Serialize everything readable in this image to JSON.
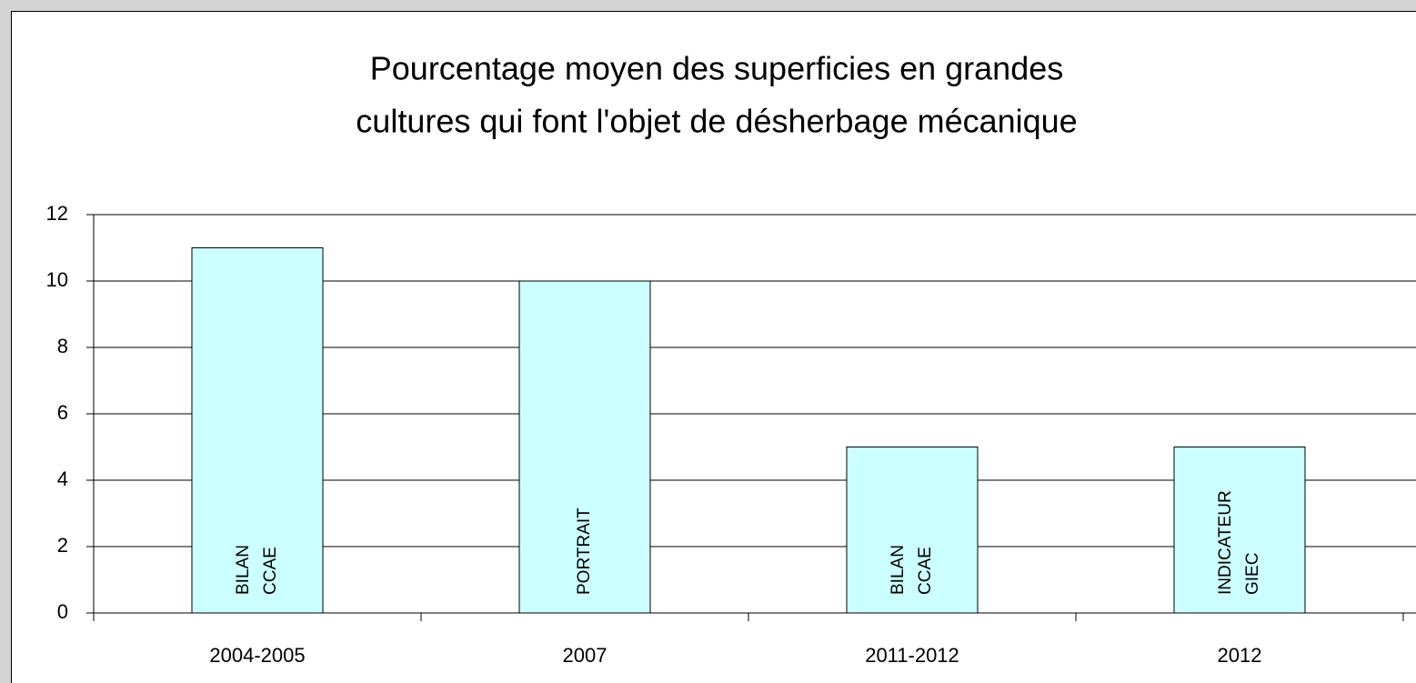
{
  "chart_data": {
    "type": "bar",
    "title": [
      "Pourcentage moyen des superficies en grandes",
      "cultures qui font l'objet de désherbage mécanique"
    ],
    "categories": [
      "2004-2005",
      "2007",
      "2011-2012",
      "2012"
    ],
    "values": [
      11,
      10,
      5,
      5
    ],
    "bar_labels": [
      [
        "BILAN",
        "CCAE"
      ],
      [
        "PORTRAIT"
      ],
      [
        "BILAN",
        "CCAE"
      ],
      [
        "INDICATEUR",
        "GIEC"
      ]
    ],
    "color": "#ccffff",
    "ylim": [
      0,
      12
    ],
    "yticks": [
      0,
      2,
      4,
      6,
      8,
      10,
      12
    ],
    "grid": true
  }
}
